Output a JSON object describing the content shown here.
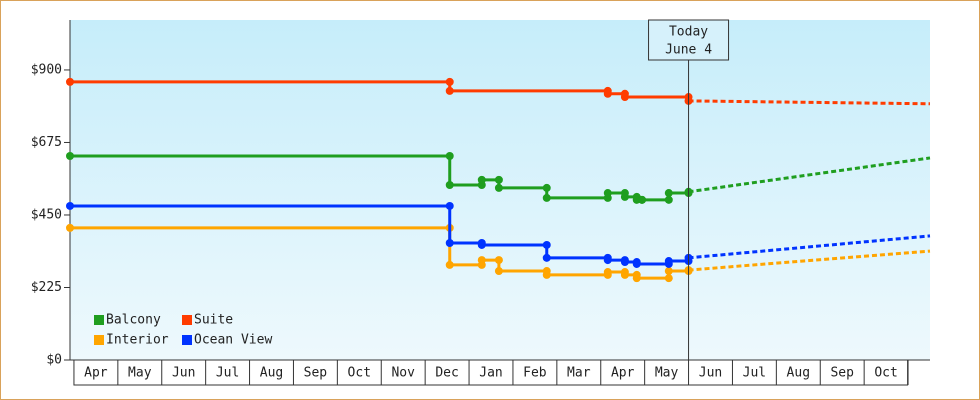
{
  "chart_data": {
    "type": "step",
    "xlim": [
      -0.09,
      19.5
    ],
    "xticks": [
      {
        "value": 0.5,
        "label": "Apr"
      },
      {
        "value": 1.5,
        "label": "May"
      },
      {
        "value": 2.5,
        "label": "Jun"
      },
      {
        "value": 3.5,
        "label": "Jul"
      },
      {
        "value": 4.5,
        "label": "Aug"
      },
      {
        "value": 5.5,
        "label": "Sep"
      },
      {
        "value": 6.5,
        "label": "Oct"
      },
      {
        "value": 7.5,
        "label": "Nov"
      },
      {
        "value": 8.5,
        "label": "Dec"
      },
      {
        "value": 9.5,
        "label": "Jan"
      },
      {
        "value": 10.5,
        "label": "Feb"
      },
      {
        "value": 11.5,
        "label": "Mar"
      },
      {
        "value": 12.5,
        "label": "Apr"
      },
      {
        "value": 13.5,
        "label": "May"
      },
      {
        "value": 14.5,
        "label": "Jun"
      },
      {
        "value": 15.5,
        "label": "Jul"
      },
      {
        "value": 16.5,
        "label": "Aug"
      },
      {
        "value": 17.5,
        "label": "Sep"
      },
      {
        "value": 18.5,
        "label": "Oct"
      }
    ],
    "ylim": [
      0,
      1055
    ],
    "yticks": [
      {
        "value": 0,
        "label": "$0"
      },
      {
        "value": 225,
        "label": "$225"
      },
      {
        "value": 450,
        "label": "$450"
      },
      {
        "value": 675,
        "label": "$675"
      },
      {
        "value": 900,
        "label": "$900"
      }
    ],
    "today": {
      "x": 14.0,
      "label": "Today",
      "date": "June 4"
    },
    "series": [
      {
        "name": "Balcony",
        "color": "#1f9e1f",
        "x": [
          -0.09,
          8.56,
          9.29,
          9.68,
          10.77,
          12.16,
          12.55,
          12.82,
          12.94,
          13.55,
          14.0
        ],
        "values": [
          633,
          543,
          559,
          534,
          503,
          518,
          506,
          497,
          497,
          518,
          522
        ],
        "forecast_x": [
          14.0,
          19.5
        ],
        "forecast_values": [
          522,
          627
        ]
      },
      {
        "name": "Suite",
        "color": "#ff3c00",
        "x": [
          -0.09,
          8.56,
          12.16,
          12.55,
          14.0
        ],
        "values": [
          863,
          835,
          826,
          816,
          804
        ],
        "forecast_x": [
          14.0,
          19.5
        ],
        "forecast_values": [
          804,
          795
        ]
      },
      {
        "name": "Interior",
        "color": "#ffa500",
        "x": [
          -0.09,
          8.56,
          9.29,
          9.68,
          10.77,
          12.16,
          12.55,
          12.82,
          13.55,
          14.0
        ],
        "values": [
          410,
          295,
          310,
          276,
          264,
          273,
          264,
          254,
          276,
          279
        ],
        "forecast_x": [
          14.0,
          19.5
        ],
        "forecast_values": [
          279,
          338
        ]
      },
      {
        "name": "Ocean View",
        "color": "#0033ff",
        "x": [
          -0.09,
          8.56,
          9.29,
          10.77,
          12.16,
          12.55,
          12.82,
          13.55,
          14.0
        ],
        "values": [
          478,
          363,
          357,
          317,
          310,
          304,
          298,
          307,
          317
        ],
        "forecast_x": [
          14.0,
          19.5
        ],
        "forecast_values": [
          317,
          385
        ]
      }
    ]
  }
}
